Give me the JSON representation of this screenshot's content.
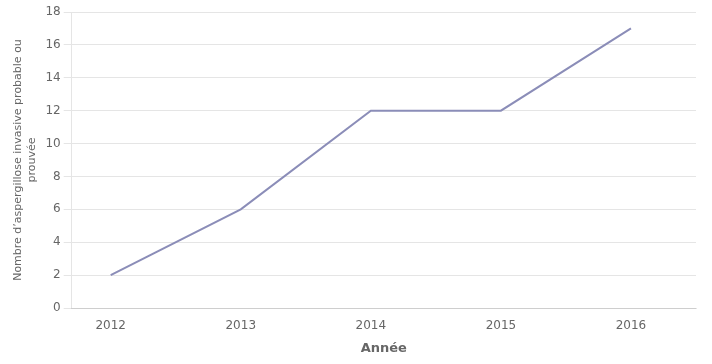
{
  "chart_data": {
    "type": "line",
    "x": [
      2012,
      2013,
      2014,
      2015,
      2016
    ],
    "values": [
      2,
      6,
      12,
      12,
      17
    ],
    "color": "#8B8DB8",
    "xlabel": "Année",
    "ylabel": "Nombre d’aspergillose invasive probable ou\nprouvée",
    "xlim": [
      2011.7,
      2016.5
    ],
    "xticks": [
      2012,
      2013,
      2014,
      2015,
      2016
    ],
    "ylim": [
      0,
      18
    ],
    "yticks": [
      0,
      2,
      4,
      6,
      8,
      10,
      12,
      14,
      16,
      18
    ],
    "grid": "y"
  }
}
